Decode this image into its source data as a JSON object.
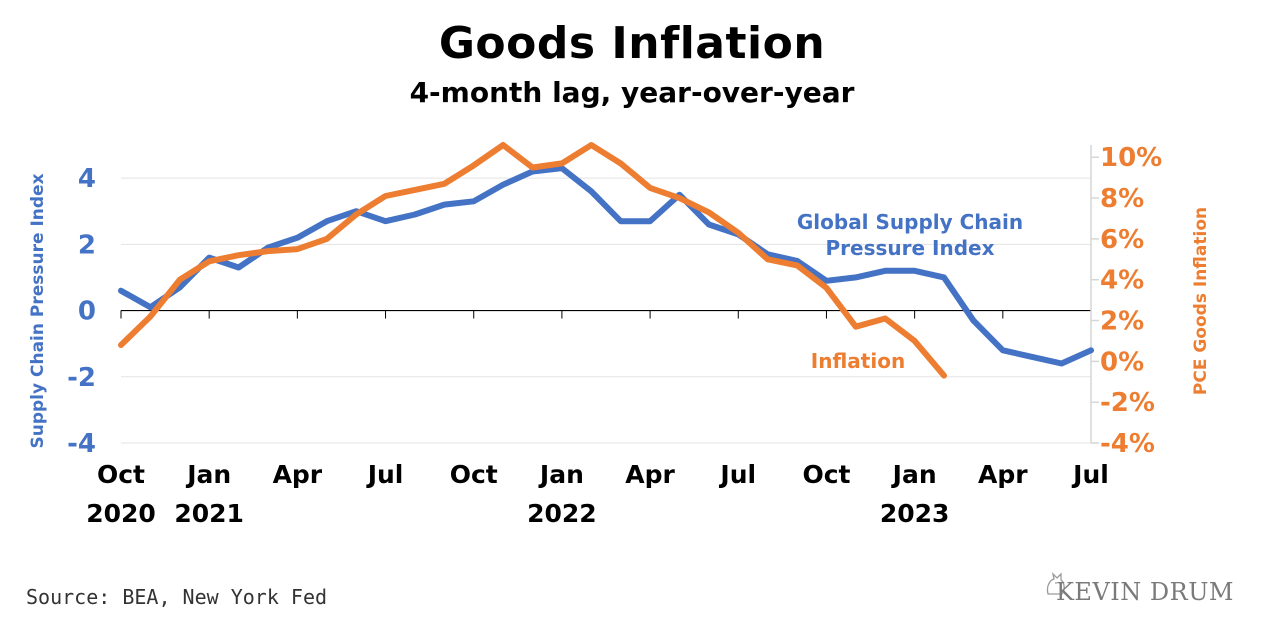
{
  "chart_data": {
    "type": "line",
    "title": "Goods Inflation",
    "subtitle": "4-month lag, year-over-year",
    "source": "Source: BEA, New York Fed",
    "brand": "KEVIN DRUM",
    "colors": {
      "blue": "#4472c4",
      "orange": "#ed7d31"
    },
    "left_axis": {
      "label": "Supply Chain Pressure Index",
      "ticks": [
        "4",
        "2",
        "0",
        "-2",
        "-4"
      ],
      "tick_values": [
        4,
        2,
        0,
        -2,
        -4
      ],
      "range": [
        -4,
        5
      ]
    },
    "right_axis": {
      "label": "PCE Goods Inflation",
      "ticks": [
        "10%",
        "8%",
        "6%",
        "4%",
        "2%",
        "0%",
        "-2%",
        "-4%"
      ],
      "tick_values": [
        10,
        8,
        6,
        4,
        2,
        0,
        -2,
        -4
      ],
      "range": [
        -4,
        10.6
      ]
    },
    "x_ticks": [
      {
        "index": 0,
        "label": "Oct",
        "year": "2020"
      },
      {
        "index": 3,
        "label": "Jan",
        "year": "2021"
      },
      {
        "index": 6,
        "label": "Apr",
        "year": ""
      },
      {
        "index": 9,
        "label": "Jul",
        "year": ""
      },
      {
        "index": 12,
        "label": "Oct",
        "year": ""
      },
      {
        "index": 15,
        "label": "Jan",
        "year": "2022"
      },
      {
        "index": 18,
        "label": "Apr",
        "year": ""
      },
      {
        "index": 21,
        "label": "Jul",
        "year": ""
      },
      {
        "index": 24,
        "label": "Oct",
        "year": ""
      },
      {
        "index": 27,
        "label": "Jan",
        "year": "2023"
      },
      {
        "index": 30,
        "label": "Apr",
        "year": ""
      },
      {
        "index": 33,
        "label": "Jul",
        "year": ""
      }
    ],
    "months": [
      "Oct 2020",
      "Nov 2020",
      "Dec 2020",
      "Jan 2021",
      "Feb 2021",
      "Mar 2021",
      "Apr 2021",
      "May 2021",
      "Jun 2021",
      "Jul 2021",
      "Aug 2021",
      "Sep 2021",
      "Oct 2021",
      "Nov 2021",
      "Dec 2021",
      "Jan 2022",
      "Feb 2022",
      "Mar 2022",
      "Apr 2022",
      "May 2022",
      "Jun 2022",
      "Jul 2022",
      "Aug 2022",
      "Sep 2022",
      "Oct 2022",
      "Nov 2022",
      "Dec 2022",
      "Jan 2023",
      "Feb 2023",
      "Mar 2023",
      "Apr 2023",
      "May 2023",
      "Jun 2023",
      "Jul 2023"
    ],
    "series": [
      {
        "name": "Global Supply Chain Pressure Index",
        "label_lines": [
          "Global Supply Chain",
          "Pressure Index"
        ],
        "axis": "left",
        "color": "#4472c4",
        "values": [
          0.6,
          0.1,
          0.7,
          1.6,
          1.3,
          1.9,
          2.2,
          2.7,
          3.0,
          2.7,
          2.9,
          3.2,
          3.3,
          3.8,
          4.2,
          4.3,
          3.6,
          2.7,
          2.7,
          3.5,
          2.6,
          2.3,
          1.7,
          1.5,
          0.9,
          1.0,
          1.2,
          1.2,
          1.0,
          -0.3,
          -1.2,
          -1.4,
          -1.6,
          -1.2
        ]
      },
      {
        "name": "Inflation",
        "label_lines": [
          "Inflation"
        ],
        "axis": "right",
        "color": "#ed7d31",
        "values": [
          0.8,
          2.2,
          4.0,
          4.9,
          5.2,
          5.4,
          5.5,
          6.0,
          7.2,
          8.1,
          8.4,
          8.7,
          9.6,
          10.6,
          9.5,
          9.7,
          10.6,
          9.7,
          8.5,
          8.0,
          7.3,
          6.3,
          5.0,
          4.7,
          3.6,
          1.7,
          2.1,
          1.0,
          -0.7
        ]
      }
    ]
  }
}
